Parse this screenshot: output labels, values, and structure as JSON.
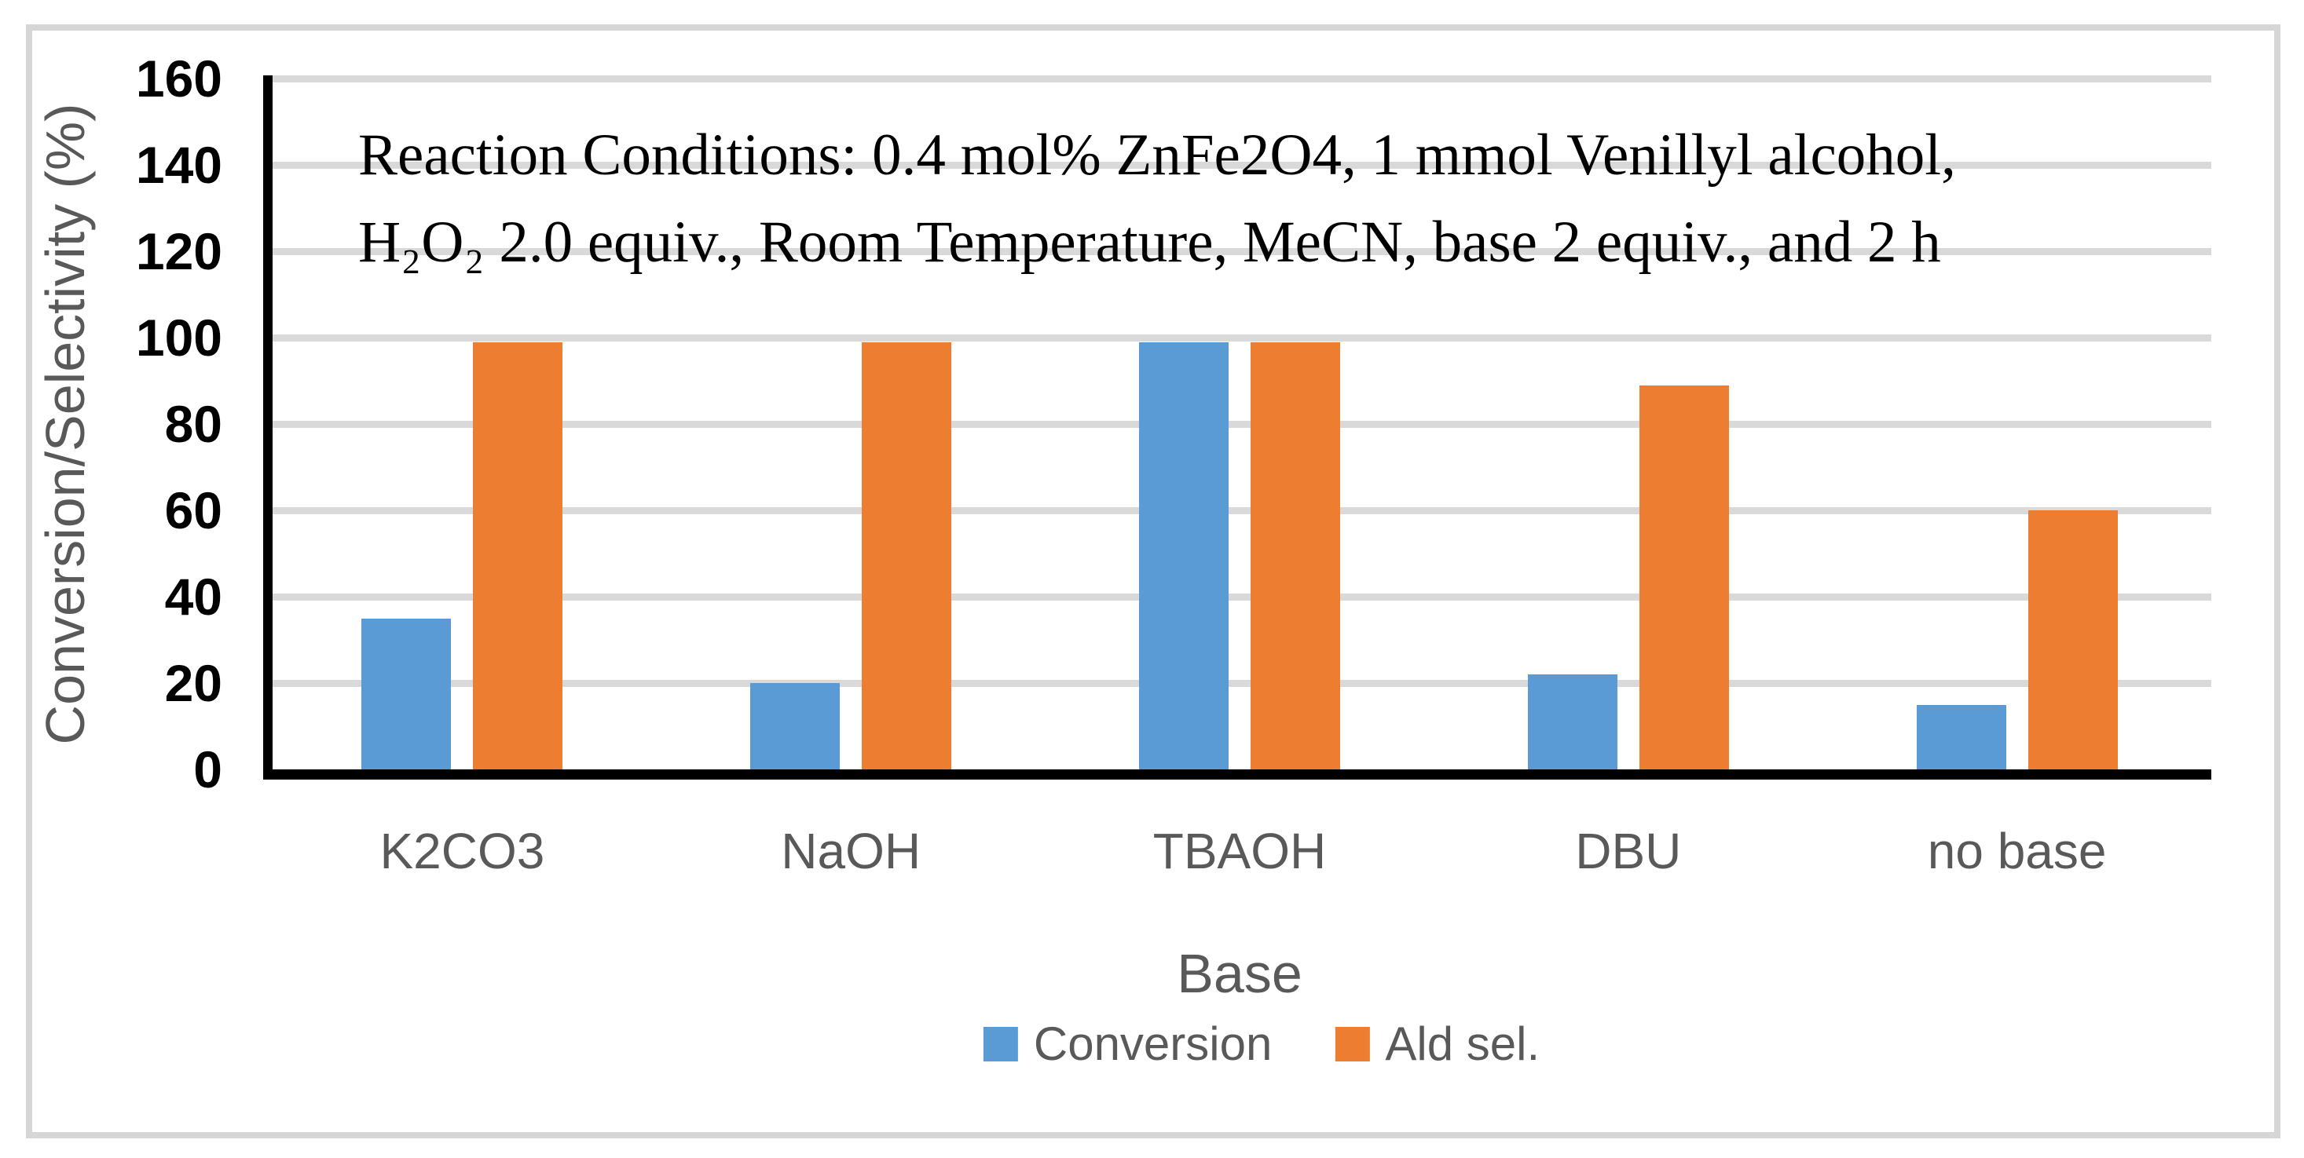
{
  "figure": {
    "border_color": "#D6D6D6",
    "background": "#ffffff"
  },
  "chart_data": {
    "type": "bar",
    "title": "",
    "categories": [
      "K2CO3",
      "NaOH",
      "TBAOH",
      "DBU",
      "no base"
    ],
    "series": [
      {
        "name": "Conversion",
        "color": "#5B9BD5",
        "values": [
          35,
          20,
          99,
          22,
          15
        ]
      },
      {
        "name": "Ald sel.",
        "color": "#ED7D31",
        "values": [
          99,
          99,
          99,
          89,
          60
        ]
      }
    ],
    "xlabel": "Base",
    "ylabel": "Conversion/Selectivity (%)",
    "ylim": [
      0,
      160
    ],
    "yticks": [
      0,
      20,
      40,
      60,
      80,
      100,
      120,
      140,
      160
    ],
    "grid": true,
    "gridline_color": "#D9D9D9",
    "axis_color": "#000000",
    "label_color": "#595959",
    "legend_position": "bottom",
    "annotation_line1": "Reaction Conditions: 0.4 mol% ZnFe2O4, 1 mmol Venillyl alcohol,",
    "annotation_line2": "H₂O₂ 2.0 equiv., Room Temperature, MeCN, base 2 equiv., and  2 h"
  }
}
